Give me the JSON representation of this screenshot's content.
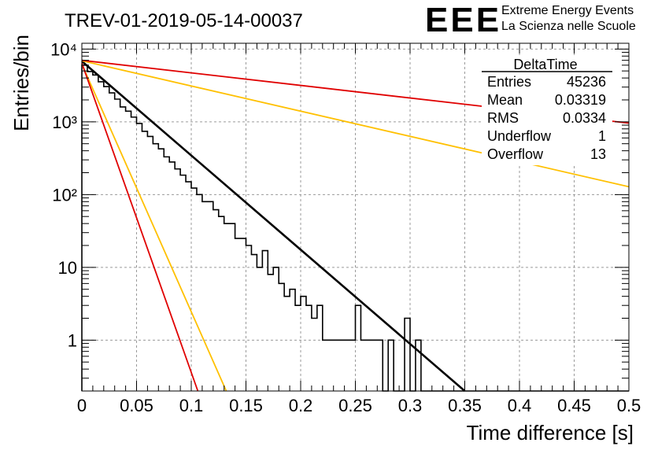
{
  "title": "TREV-01-2019-05-14-00037",
  "logo": {
    "mark": "EEE",
    "line1": "Extreme Energy Events",
    "line2": "La Scienza nelle Scuole",
    "color": "#1f1fe6"
  },
  "stats": {
    "name": "DeltaTime",
    "rows": [
      {
        "label": "Entries",
        "value": "45236"
      },
      {
        "label": "Mean",
        "value": "0.03319"
      },
      {
        "label": "RMS",
        "value": "0.0334"
      },
      {
        "label": "Underflow",
        "value": "1"
      },
      {
        "label": "Overflow",
        "value": "13"
      }
    ]
  },
  "chart_data": {
    "type": "histogram",
    "title": "TREV-01-2019-05-14-00037",
    "xlabel": "Time difference [s]",
    "ylabel": "Entries/bin",
    "xlim": [
      0,
      0.5
    ],
    "ylim": [
      0.2,
      12000
    ],
    "yscale": "log",
    "grid": true,
    "x_ticks": [
      0,
      0.05,
      0.1,
      0.15,
      0.2,
      0.25,
      0.3,
      0.35,
      0.4,
      0.45,
      0.5
    ],
    "x_tick_labels": [
      "0",
      "0.05",
      "0.1",
      "0.15",
      "0.2",
      "0.25",
      "0.3",
      "0.35",
      "0.4",
      "0.45",
      "0.5"
    ],
    "y_ticks": [
      1,
      10,
      100,
      1000,
      10000
    ],
    "y_tick_labels": [
      "1",
      "10",
      "10²",
      "10³",
      "10⁴"
    ],
    "bin_width": 0.005,
    "histogram": [
      6000,
      4900,
      4400,
      3550,
      3050,
      2500,
      2050,
      1600,
      1400,
      1160,
      950,
      740,
      630,
      500,
      425,
      330,
      280,
      225,
      185,
      150,
      123,
      100,
      80,
      80,
      62,
      50,
      40,
      40,
      25,
      25,
      20,
      15,
      10,
      17,
      8,
      10,
      6,
      4,
      5,
      3,
      4,
      3,
      2,
      3,
      1,
      1,
      1,
      1,
      1,
      1,
      3,
      1,
      1,
      1,
      1,
      0,
      1,
      0,
      0,
      2,
      0,
      1,
      0,
      0,
      0,
      0,
      0,
      0,
      0,
      0,
      0,
      0,
      0,
      0,
      0,
      0,
      0,
      0,
      0,
      0,
      0,
      0,
      0,
      0,
      0,
      0,
      0,
      0,
      0,
      0,
      0,
      0,
      0,
      0,
      0,
      0,
      0,
      0,
      0,
      0
    ],
    "fits": [
      {
        "color": "#000000",
        "width": 2.6,
        "points": [
          [
            0,
            6800
          ],
          [
            0.35,
            0.2
          ]
        ]
      },
      {
        "color": "#ffc000",
        "width": 1.8,
        "points": [
          [
            0,
            6900
          ],
          [
            0.5,
            128
          ]
        ]
      },
      {
        "color": "#e00000",
        "width": 1.8,
        "points": [
          [
            0,
            7000
          ],
          [
            0.5,
            960
          ]
        ]
      },
      {
        "color": "#ffc000",
        "width": 1.8,
        "points": [
          [
            0,
            6200
          ],
          [
            0.132,
            0.2
          ]
        ]
      },
      {
        "color": "#e00000",
        "width": 1.8,
        "points": [
          [
            0,
            6400
          ],
          [
            0.106,
            0.2
          ]
        ]
      }
    ]
  }
}
